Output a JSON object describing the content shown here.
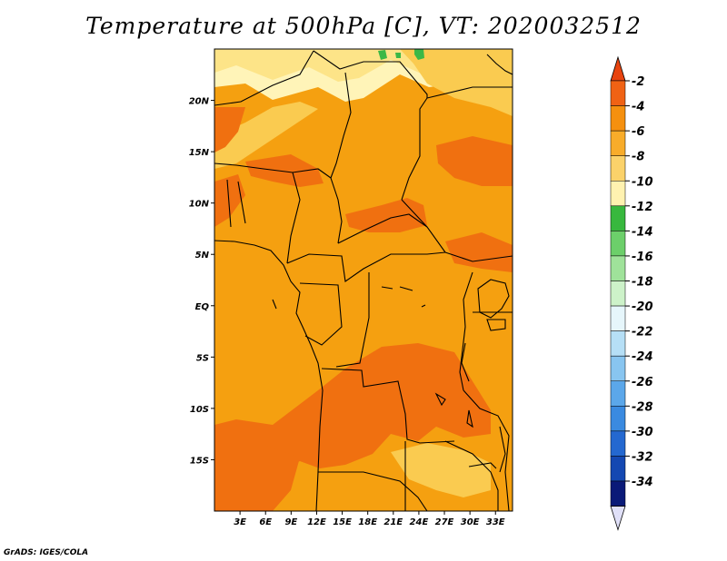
{
  "title": "Temperature at 500hPa [C], VT: 2020032512",
  "credit": "GrADS: IGES/COLA",
  "map": {
    "lon_range": [
      0,
      35
    ],
    "lat_range": [
      -20,
      25
    ],
    "x_ticks": [
      {
        "lon": 3,
        "label": "3E"
      },
      {
        "lon": 6,
        "label": "6E"
      },
      {
        "lon": 9,
        "label": "9E"
      },
      {
        "lon": 12,
        "label": "12E"
      },
      {
        "lon": 15,
        "label": "15E"
      },
      {
        "lon": 18,
        "label": "18E"
      },
      {
        "lon": 21,
        "label": "21E"
      },
      {
        "lon": 24,
        "label": "24E"
      },
      {
        "lon": 27,
        "label": "27E"
      },
      {
        "lon": 30,
        "label": "30E"
      },
      {
        "lon": 33,
        "label": "33E"
      }
    ],
    "y_ticks": [
      {
        "lat": 20,
        "label": "20N"
      },
      {
        "lat": 15,
        "label": "15N"
      },
      {
        "lat": 10,
        "label": "10N"
      },
      {
        "lat": 5,
        "label": "5N"
      },
      {
        "lat": 0,
        "label": "EQ"
      },
      {
        "lat": -5,
        "label": "5S"
      },
      {
        "lat": -10,
        "label": "10S"
      },
      {
        "lat": -15,
        "label": "15S"
      }
    ],
    "fill_colors": {
      "base": "#f5a010",
      "warm": "#f07010",
      "cool": "#facb50",
      "cooler": "#fde488",
      "cold": "#fff4b8",
      "green": "#3cb846"
    }
  },
  "colorbar": {
    "labels": [
      "-2",
      "-4",
      "-6",
      "-8",
      "-10",
      "-12",
      "-14",
      "-16",
      "-18",
      "-20",
      "-22",
      "-24",
      "-26",
      "-28",
      "-30",
      "-32",
      "-34"
    ],
    "top_arrow_color": "#e8440f",
    "bottom_arrow_color": "#e0e0f8",
    "colors": [
      "#f06214",
      "#f5900f",
      "#f8ac2a",
      "#fbd26a",
      "#fff2b0",
      "#38b83e",
      "#6ccf6a",
      "#9fe29a",
      "#cdf2c9",
      "#e6f6fb",
      "#b6dff6",
      "#88c5f0",
      "#5ba7ea",
      "#3a8ae0",
      "#2468d0",
      "#1448b2",
      "#0a1a78"
    ]
  }
}
